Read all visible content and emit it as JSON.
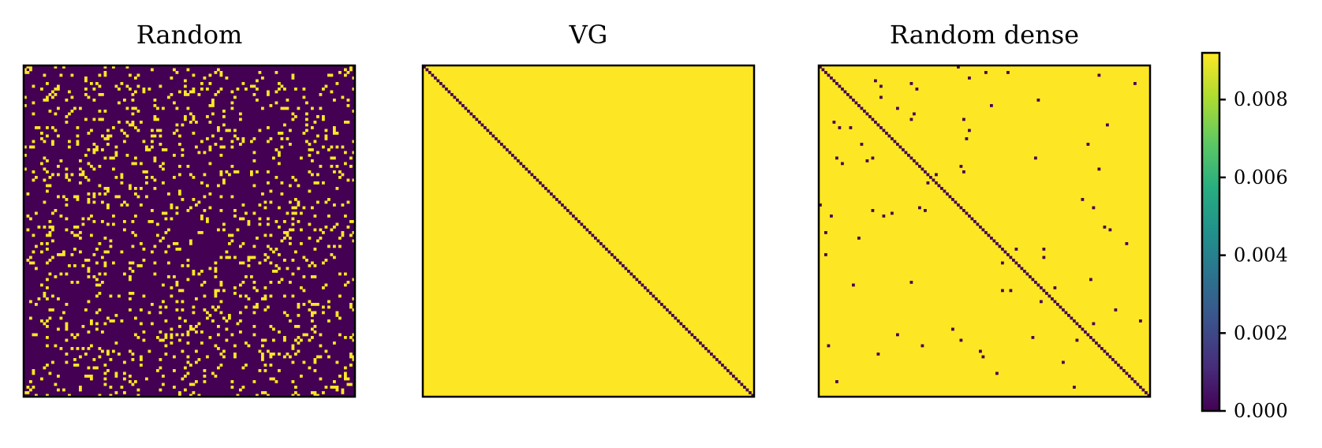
{
  "chart_data": [
    {
      "type": "heatmap",
      "title": "Random",
      "size": 120,
      "values": [
        0,
        0.0092
      ],
      "pattern": "sparse random symmetric adjacency (mostly 0.000, scattered 0.0092 cells)",
      "density": 0.09
    },
    {
      "type": "heatmap",
      "title": "VG",
      "size": 120,
      "values": [
        0,
        0.0092
      ],
      "pattern": "all cells 0.0092 except diagonal 0.000"
    },
    {
      "type": "heatmap",
      "title": "Random dense",
      "size": 120,
      "values": [
        0,
        0.0092
      ],
      "pattern": "mostly 0.0092 with diagonal 0.000 and sparse scattered 0.000 cells",
      "density": 0.006
    }
  ],
  "colorbar": {
    "colormap": "viridis",
    "vmin": 0.0,
    "vmax": 0.0092,
    "ticks": [
      "0.000",
      "0.002",
      "0.004",
      "0.006",
      "0.008"
    ],
    "tick_values": [
      0.0,
      0.002,
      0.004,
      0.006,
      0.008
    ]
  },
  "colors": {
    "low": "#440154",
    "high": "#fde725"
  }
}
